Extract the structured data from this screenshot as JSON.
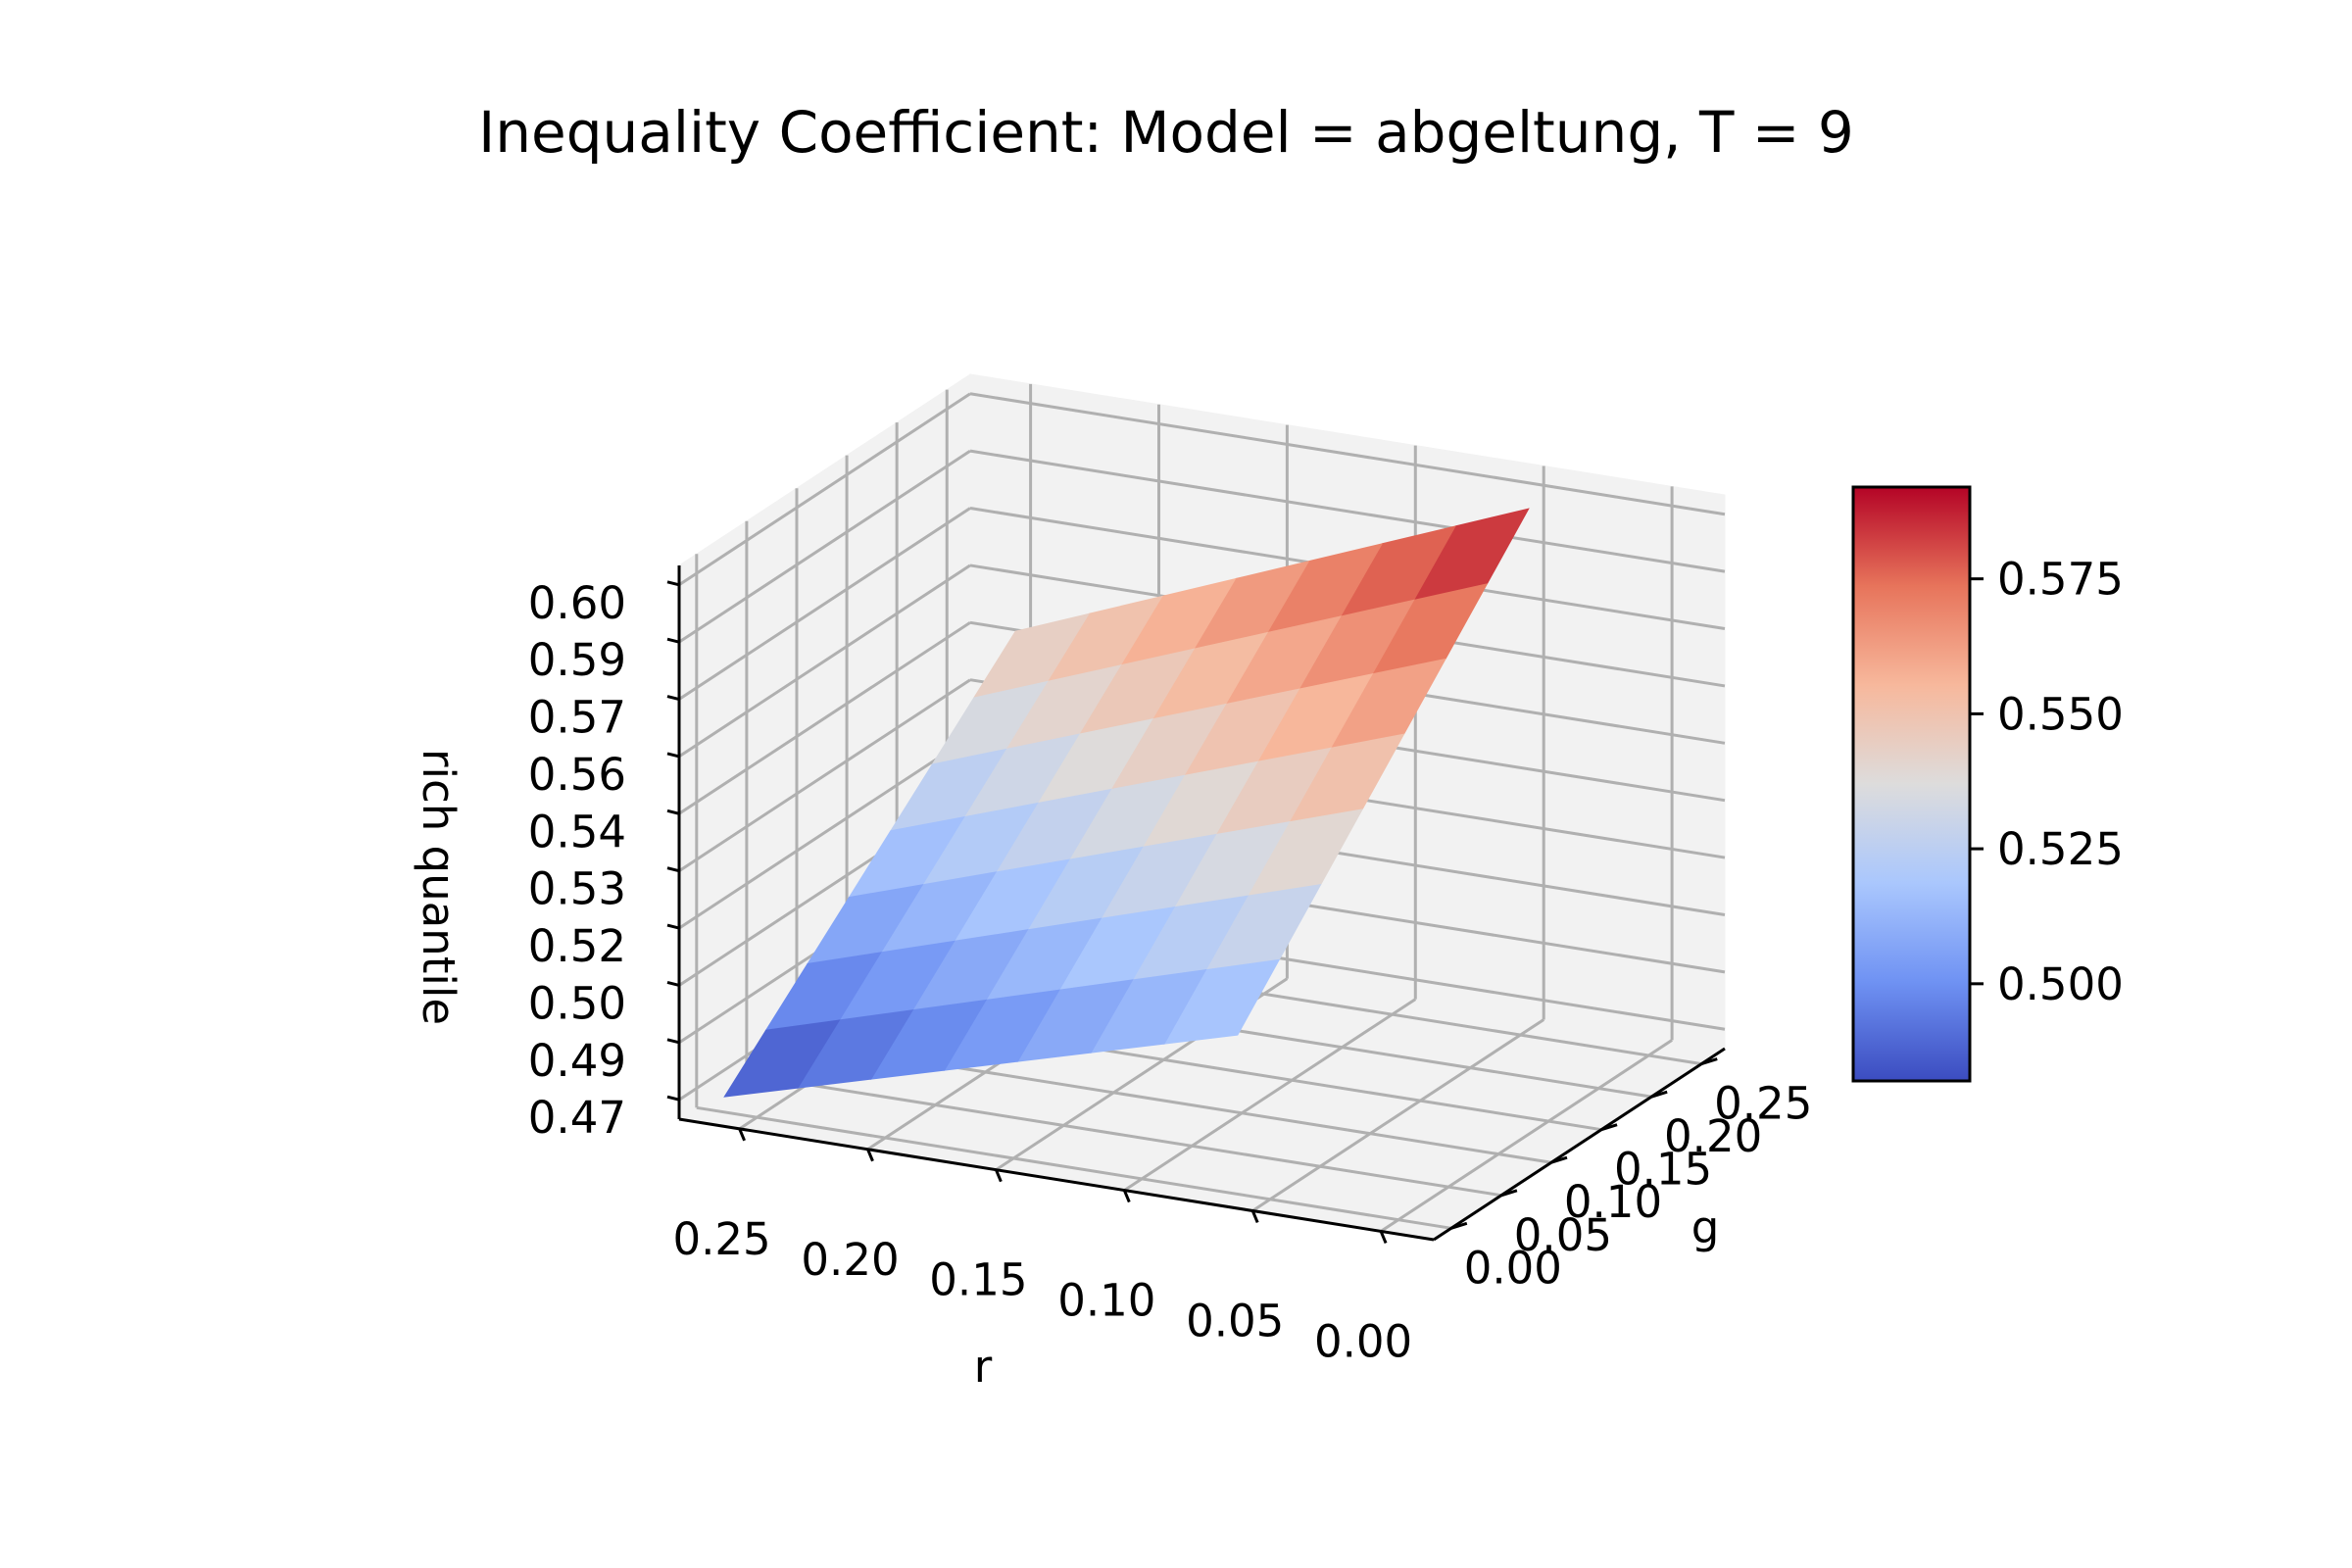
{
  "chart_data": {
    "type": "surface3d",
    "title": "Inequality Coefficient: Model = abgeltung, T = 9",
    "xlabel": "r",
    "ylabel": "g",
    "zlabel": "rich quantile",
    "x_ticks": [
      "0.25",
      "0.20",
      "0.15",
      "0.10",
      "0.05",
      "0.00"
    ],
    "y_ticks": [
      "0.00",
      "0.05",
      "0.10",
      "0.15",
      "0.20",
      "0.25"
    ],
    "z_ticks": [
      "0.47",
      "0.49",
      "0.50",
      "0.52",
      "0.53",
      "0.54",
      "0.56",
      "0.57",
      "0.59",
      "0.60"
    ],
    "colorbar_ticks": [
      "0.500",
      "0.525",
      "0.550",
      "0.575"
    ],
    "colormap": "coolwarm",
    "colormap_stops": [
      "#3b4cc0",
      "#6f92f3",
      "#aac7fd",
      "#dddcdc",
      "#f7b89c",
      "#e7745b",
      "#b40426"
    ],
    "r_values": [
      0.0,
      0.04,
      0.08,
      0.12,
      0.16,
      0.2,
      0.24,
      0.28
    ],
    "g_values": [
      0.0,
      0.04,
      0.08,
      0.12,
      0.16,
      0.2,
      0.24,
      0.28
    ],
    "z_at_r_max_g_min": 0.482,
    "z_at_r_min_g_min": 0.515,
    "z_at_r_max_g_max": 0.545,
    "z_at_r_min_g_max": 0.592,
    "z_range": [
      0.482,
      0.592
    ],
    "grid": true,
    "colorbar_position": "right"
  }
}
